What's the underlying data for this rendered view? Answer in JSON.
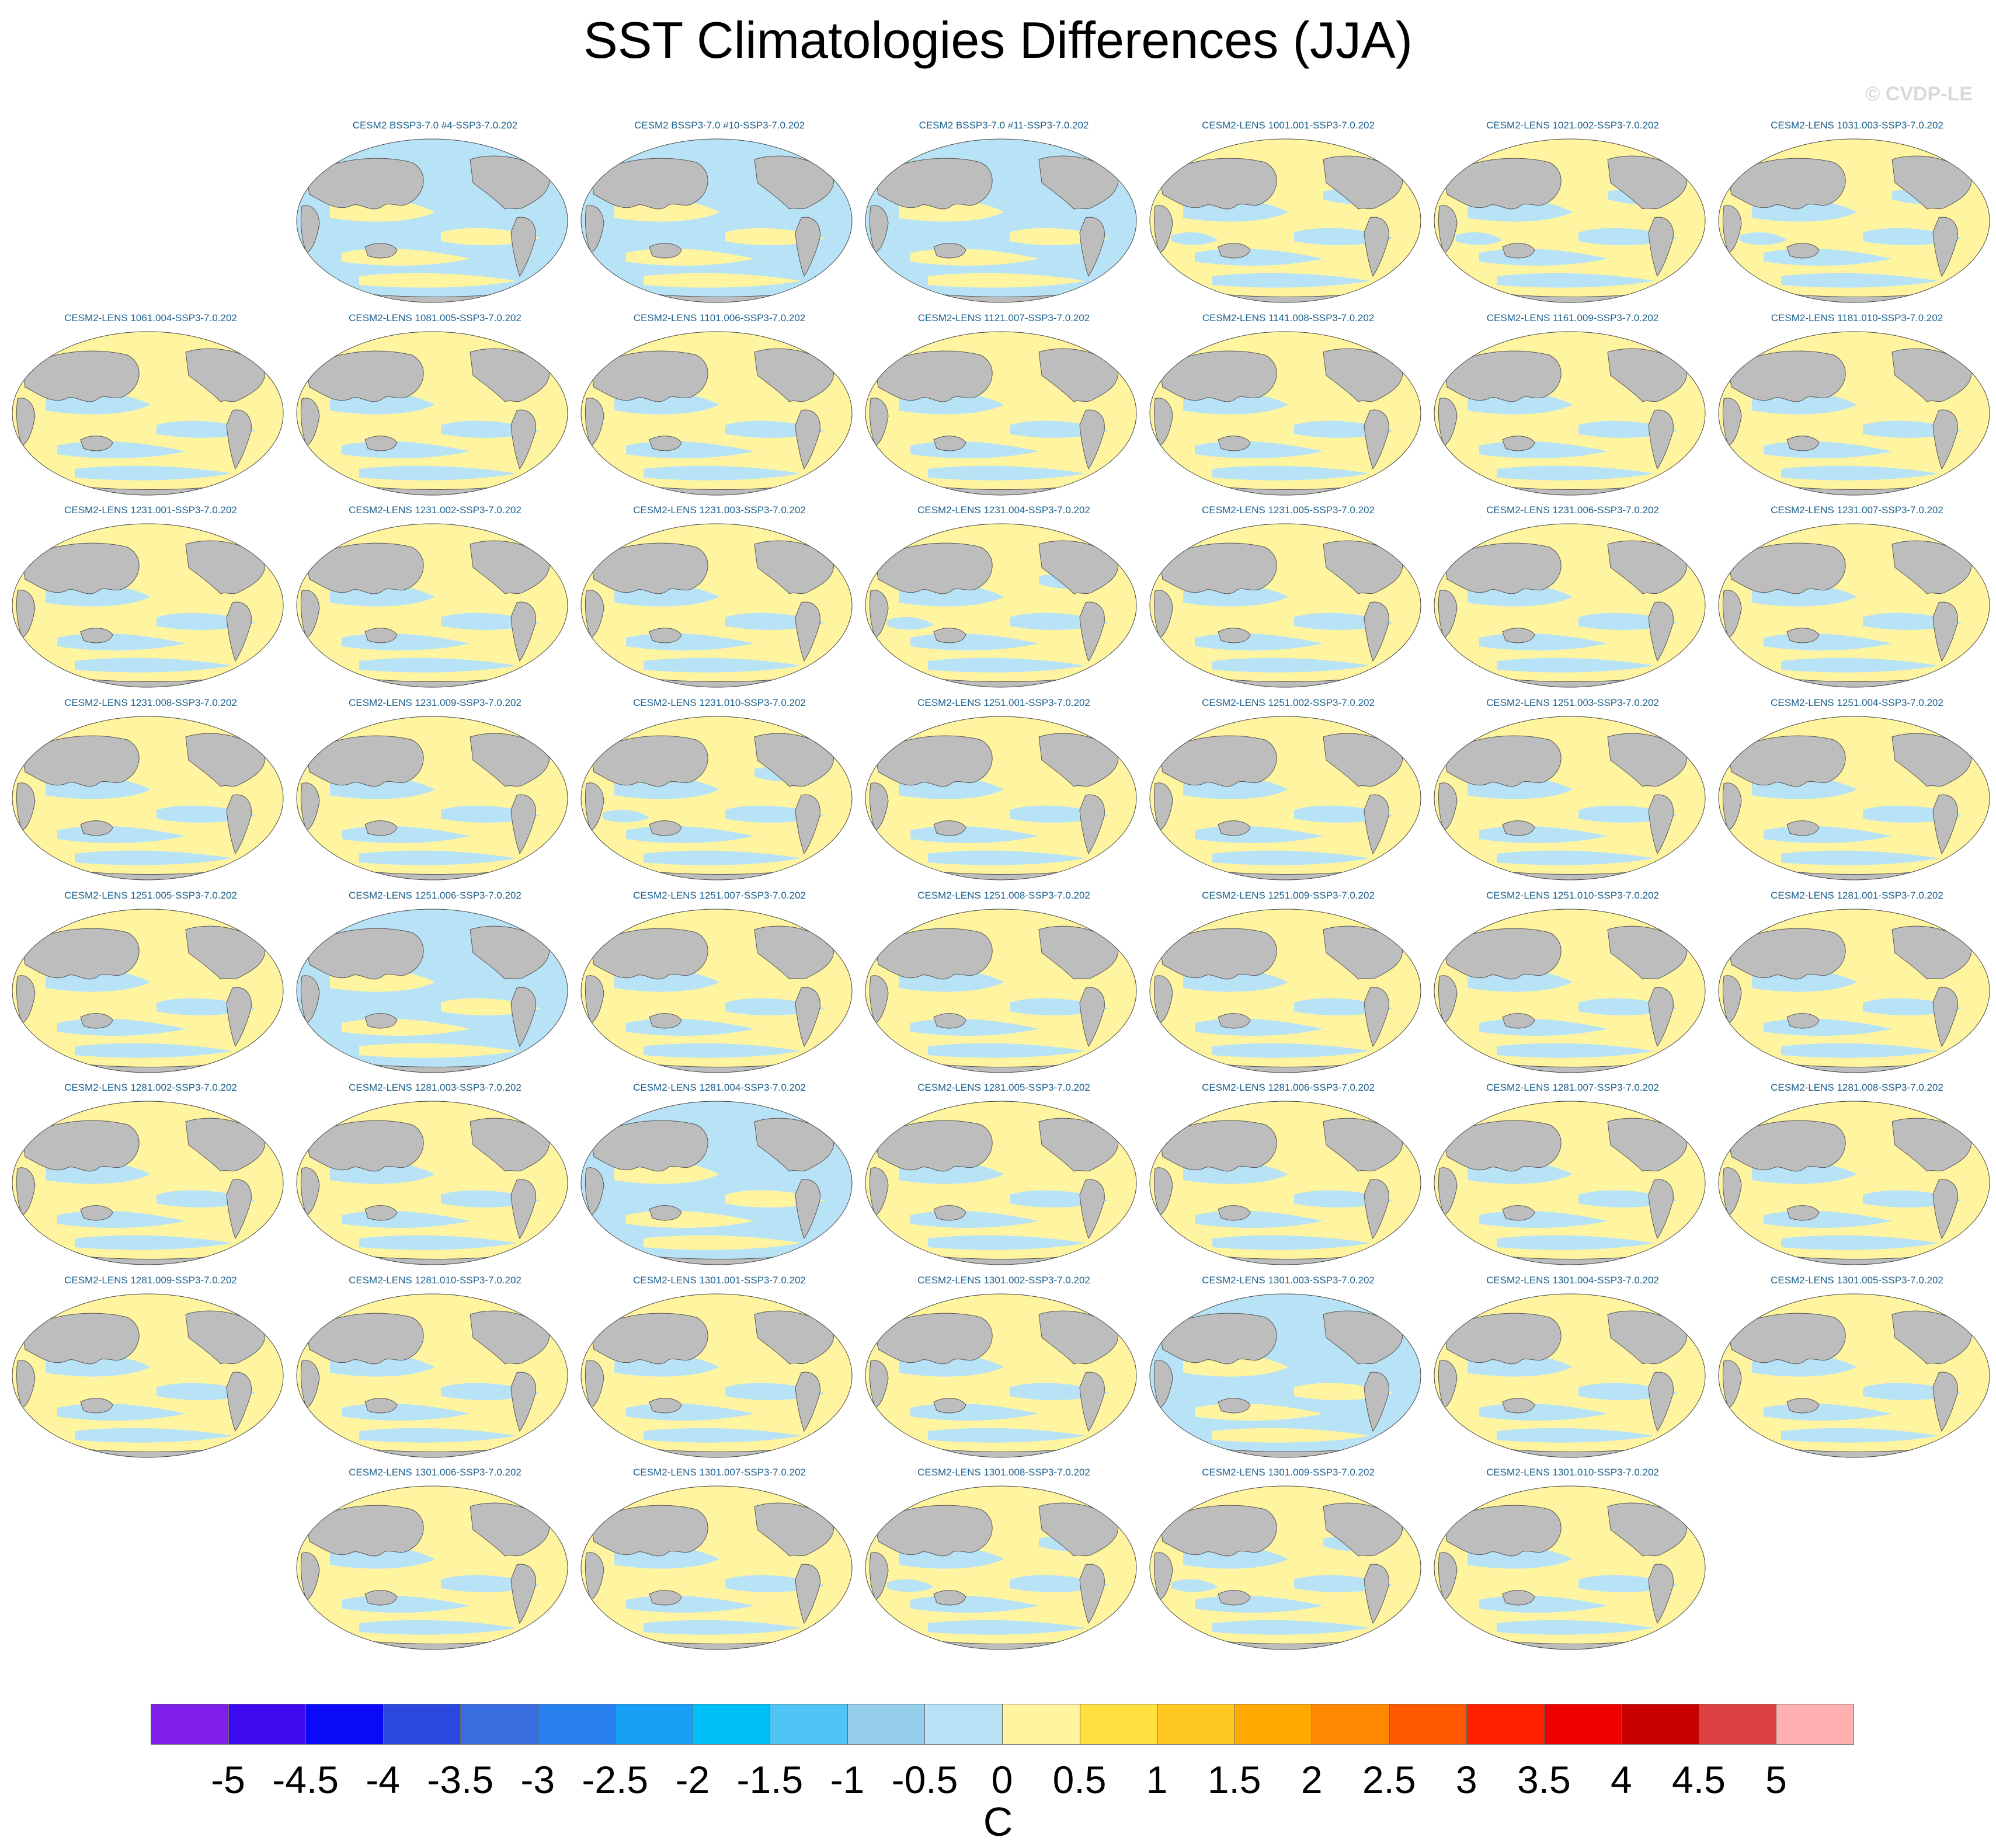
{
  "title": "SST Climatologies Differences (JJA)",
  "credit": "© CVDP-LE",
  "chart_data": {
    "type": "heatmap",
    "title": "SST Climatologies Differences (JJA)",
    "units": "C",
    "colorbar": {
      "labels": [
        "-5",
        "-4.5",
        "-4",
        "-3.5",
        "-3",
        "-2.5",
        "-2",
        "-1.5",
        "-1",
        "-0.5",
        "0",
        "0.5",
        "1",
        "1.5",
        "2",
        "2.5",
        "3",
        "3.5",
        "4",
        "4.5",
        "5"
      ],
      "colors": [
        "#7f1ee8",
        "#3d0af0",
        "#0a0af6",
        "#2a48e0",
        "#3a6ee0",
        "#2880f0",
        "#18a0f6",
        "#00c0f8",
        "#50c4f4",
        "#96cfec",
        "#b8e2f6",
        "#fff5a0",
        "#ffe040",
        "#ffc820",
        "#ffa800",
        "#ff8800",
        "#ff5800",
        "#ff2000",
        "#ee0000",
        "#c80000",
        "#dc4040",
        "#ffb0b0"
      ]
    },
    "panels": [
      {
        "row": 0,
        "col": 1,
        "name": "CESM2 BSSP3-7.0 #4-SSP3-7.0.202",
        "pattern": "cool"
      },
      {
        "row": 0,
        "col": 2,
        "name": "CESM2 BSSP3-7.0 #10-SSP3-7.0.202",
        "pattern": "cool"
      },
      {
        "row": 0,
        "col": 3,
        "name": "CESM2 BSSP3-7.0 #11-SSP3-7.0.202",
        "pattern": "cool"
      },
      {
        "row": 0,
        "col": 4,
        "name": "CESM2-LENS 1001.001-SSP3-7.0.202",
        "pattern": "mixed"
      },
      {
        "row": 0,
        "col": 5,
        "name": "CESM2-LENS 1021.002-SSP3-7.0.202",
        "pattern": "mixed"
      },
      {
        "row": 0,
        "col": 6,
        "name": "CESM2-LENS 1031.003-SSP3-7.0.202",
        "pattern": "mixed"
      },
      {
        "row": 1,
        "col": 0,
        "name": "CESM2-LENS 1061.004-SSP3-7.0.202",
        "pattern": "warm"
      },
      {
        "row": 1,
        "col": 1,
        "name": "CESM2-LENS 1081.005-SSP3-7.0.202",
        "pattern": "warm"
      },
      {
        "row": 1,
        "col": 2,
        "name": "CESM2-LENS 1101.006-SSP3-7.0.202",
        "pattern": "warm"
      },
      {
        "row": 1,
        "col": 3,
        "name": "CESM2-LENS 1121.007-SSP3-7.0.202",
        "pattern": "warm"
      },
      {
        "row": 1,
        "col": 4,
        "name": "CESM2-LENS 1141.008-SSP3-7.0.202",
        "pattern": "warm"
      },
      {
        "row": 1,
        "col": 5,
        "name": "CESM2-LENS 1161.009-SSP3-7.0.202",
        "pattern": "warm"
      },
      {
        "row": 1,
        "col": 6,
        "name": "CESM2-LENS 1181.010-SSP3-7.0.202",
        "pattern": "warm"
      },
      {
        "row": 2,
        "col": 0,
        "name": "CESM2-LENS 1231.001-SSP3-7.0.202",
        "pattern": "warm"
      },
      {
        "row": 2,
        "col": 1,
        "name": "CESM2-LENS 1231.002-SSP3-7.0.202",
        "pattern": "warm"
      },
      {
        "row": 2,
        "col": 2,
        "name": "CESM2-LENS 1231.003-SSP3-7.0.202",
        "pattern": "warm"
      },
      {
        "row": 2,
        "col": 3,
        "name": "CESM2-LENS 1231.004-SSP3-7.0.202",
        "pattern": "mixed"
      },
      {
        "row": 2,
        "col": 4,
        "name": "CESM2-LENS 1231.005-SSP3-7.0.202",
        "pattern": "warm"
      },
      {
        "row": 2,
        "col": 5,
        "name": "CESM2-LENS 1231.006-SSP3-7.0.202",
        "pattern": "warm"
      },
      {
        "row": 2,
        "col": 6,
        "name": "CESM2-LENS 1231.007-SSP3-7.0.202",
        "pattern": "warm"
      },
      {
        "row": 3,
        "col": 0,
        "name": "CESM2-LENS 1231.008-SSP3-7.0.202",
        "pattern": "warm"
      },
      {
        "row": 3,
        "col": 1,
        "name": "CESM2-LENS 1231.009-SSP3-7.0.202",
        "pattern": "warm"
      },
      {
        "row": 3,
        "col": 2,
        "name": "CESM2-LENS 1231.010-SSP3-7.0.202",
        "pattern": "mixed"
      },
      {
        "row": 3,
        "col": 3,
        "name": "CESM2-LENS 1251.001-SSP3-7.0.202",
        "pattern": "warm"
      },
      {
        "row": 3,
        "col": 4,
        "name": "CESM2-LENS 1251.002-SSP3-7.0.202",
        "pattern": "warm"
      },
      {
        "row": 3,
        "col": 5,
        "name": "CESM2-LENS 1251.003-SSP3-7.0.202",
        "pattern": "warm"
      },
      {
        "row": 3,
        "col": 6,
        "name": "CESM2-LENS 1251.004-SSP3-7.0.202",
        "pattern": "warm"
      },
      {
        "row": 4,
        "col": 0,
        "name": "CESM2-LENS 1251.005-SSP3-7.0.202",
        "pattern": "warm"
      },
      {
        "row": 4,
        "col": 1,
        "name": "CESM2-LENS 1251.006-SSP3-7.0.202",
        "pattern": "cool"
      },
      {
        "row": 4,
        "col": 2,
        "name": "CESM2-LENS 1251.007-SSP3-7.0.202",
        "pattern": "warm"
      },
      {
        "row": 4,
        "col": 3,
        "name": "CESM2-LENS 1251.008-SSP3-7.0.202",
        "pattern": "warm"
      },
      {
        "row": 4,
        "col": 4,
        "name": "CESM2-LENS 1251.009-SSP3-7.0.202",
        "pattern": "warm"
      },
      {
        "row": 4,
        "col": 5,
        "name": "CESM2-LENS 1251.010-SSP3-7.0.202",
        "pattern": "warm"
      },
      {
        "row": 4,
        "col": 6,
        "name": "CESM2-LENS 1281.001-SSP3-7.0.202",
        "pattern": "warm"
      },
      {
        "row": 5,
        "col": 0,
        "name": "CESM2-LENS 1281.002-SSP3-7.0.202",
        "pattern": "warm"
      },
      {
        "row": 5,
        "col": 1,
        "name": "CESM2-LENS 1281.003-SSP3-7.0.202",
        "pattern": "warm"
      },
      {
        "row": 5,
        "col": 2,
        "name": "CESM2-LENS 1281.004-SSP3-7.0.202",
        "pattern": "cool"
      },
      {
        "row": 5,
        "col": 3,
        "name": "CESM2-LENS 1281.005-SSP3-7.0.202",
        "pattern": "warm"
      },
      {
        "row": 5,
        "col": 4,
        "name": "CESM2-LENS 1281.006-SSP3-7.0.202",
        "pattern": "warm"
      },
      {
        "row": 5,
        "col": 5,
        "name": "CESM2-LENS 1281.007-SSP3-7.0.202",
        "pattern": "warm"
      },
      {
        "row": 5,
        "col": 6,
        "name": "CESM2-LENS 1281.008-SSP3-7.0.202",
        "pattern": "warm"
      },
      {
        "row": 6,
        "col": 0,
        "name": "CESM2-LENS 1281.009-SSP3-7.0.202",
        "pattern": "warm"
      },
      {
        "row": 6,
        "col": 1,
        "name": "CESM2-LENS 1281.010-SSP3-7.0.202",
        "pattern": "warm"
      },
      {
        "row": 6,
        "col": 2,
        "name": "CESM2-LENS 1301.001-SSP3-7.0.202",
        "pattern": "warm"
      },
      {
        "row": 6,
        "col": 3,
        "name": "CESM2-LENS 1301.002-SSP3-7.0.202",
        "pattern": "warm"
      },
      {
        "row": 6,
        "col": 4,
        "name": "CESM2-LENS 1301.003-SSP3-7.0.202",
        "pattern": "cool"
      },
      {
        "row": 6,
        "col": 5,
        "name": "CESM2-LENS 1301.004-SSP3-7.0.202",
        "pattern": "warm"
      },
      {
        "row": 6,
        "col": 6,
        "name": "CESM2-LENS 1301.005-SSP3-7.0.202",
        "pattern": "warm"
      },
      {
        "row": 7,
        "col": 1,
        "name": "CESM2-LENS 1301.006-SSP3-7.0.202",
        "pattern": "warm"
      },
      {
        "row": 7,
        "col": 2,
        "name": "CESM2-LENS 1301.007-SSP3-7.0.202",
        "pattern": "warm"
      },
      {
        "row": 7,
        "col": 3,
        "name": "CESM2-LENS 1301.008-SSP3-7.0.202",
        "pattern": "mixed"
      },
      {
        "row": 7,
        "col": 4,
        "name": "CESM2-LENS 1301.009-SSP3-7.0.202",
        "pattern": "mixed"
      },
      {
        "row": 7,
        "col": 5,
        "name": "CESM2-LENS 1301.010-SSP3-7.0.202",
        "pattern": "warm"
      }
    ]
  }
}
